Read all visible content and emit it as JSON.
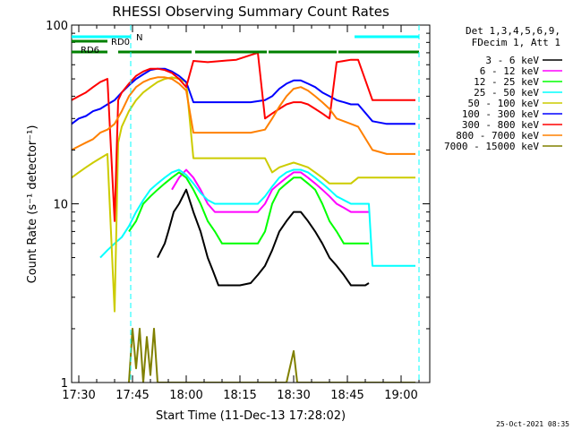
{
  "chart_data": {
    "type": "line",
    "title": "RHESSI Observing Summary Count Rates",
    "xlabel": "Start Time (11-Dec-13 17:28:02)",
    "ylabel": "Count Rate (s⁻¹ detector⁻¹)",
    "yscale": "log",
    "ylim": [
      1,
      100
    ],
    "xlim_minutes_after_1728": [
      0,
      100
    ],
    "x_tick_labels": [
      "17:30",
      "17:45",
      "18:00",
      "18:15",
      "18:30",
      "18:45",
      "19:00"
    ],
    "x_tick_minutes": [
      2,
      17,
      32,
      47,
      62,
      77,
      92
    ],
    "y_tick_labels": [
      "1",
      "10",
      "100"
    ],
    "y_tick_values": [
      1,
      10,
      100
    ],
    "legend_header": [
      "Det 1,3,4,5,6,9,",
      "FDecim 1, Att 1"
    ],
    "legend_position": "right",
    "date_stamp": "25-Oct-2021 08:35",
    "flags": [
      {
        "label": "N",
        "color": "#00ffff",
        "segments": [
          [
            0,
            16.5
          ],
          [
            79,
            97
          ]
        ]
      },
      {
        "label": "RD0",
        "color": "#008000",
        "segments": [
          [
            0,
            10
          ]
        ]
      },
      {
        "label": "RD6",
        "color": "#008000",
        "segments": [
          [
            0,
            10
          ],
          [
            13,
            33.5
          ],
          [
            34.5,
            54.5
          ],
          [
            55,
            74
          ],
          [
            74.5,
            97
          ]
        ]
      }
    ],
    "series": [
      {
        "name": "3 - 6 keV",
        "color": "#000000",
        "points": [
          [
            24,
            5
          ],
          [
            26,
            6
          ],
          [
            27,
            7
          ],
          [
            28.5,
            9
          ],
          [
            30,
            10
          ],
          [
            32,
            12
          ],
          [
            34,
            9
          ],
          [
            36,
            7
          ],
          [
            38,
            5
          ],
          [
            39.5,
            4.2
          ],
          [
            41,
            3.5
          ],
          [
            44,
            3.5
          ],
          [
            47,
            3.5
          ],
          [
            50,
            3.6
          ],
          [
            52,
            4
          ],
          [
            54,
            4.5
          ],
          [
            56,
            5.5
          ],
          [
            58,
            7
          ],
          [
            60,
            8
          ],
          [
            62,
            9
          ],
          [
            64,
            9
          ],
          [
            66,
            8
          ],
          [
            68,
            7
          ],
          [
            70,
            6
          ],
          [
            72,
            5
          ],
          [
            74,
            4.5
          ],
          [
            76,
            4
          ],
          [
            78,
            3.5
          ],
          [
            80,
            3.5
          ],
          [
            82,
            3.5
          ],
          [
            83,
            3.6
          ]
        ]
      },
      {
        "name": "6 - 12 keV",
        "color": "#ff00ff",
        "points": [
          [
            28,
            12
          ],
          [
            30,
            14
          ],
          [
            32,
            15.5
          ],
          [
            34,
            14
          ],
          [
            36,
            12
          ],
          [
            38,
            10
          ],
          [
            40,
            9
          ],
          [
            44,
            9
          ],
          [
            48,
            9
          ],
          [
            52,
            9
          ],
          [
            54,
            10
          ],
          [
            56,
            12
          ],
          [
            58,
            13
          ],
          [
            60,
            14
          ],
          [
            62,
            15
          ],
          [
            64,
            15
          ],
          [
            66,
            14
          ],
          [
            68,
            13
          ],
          [
            70,
            12
          ],
          [
            72,
            11
          ],
          [
            74,
            10
          ],
          [
            76,
            9.5
          ],
          [
            78,
            9
          ],
          [
            80,
            9
          ],
          [
            83,
            9
          ]
        ]
      },
      {
        "name": "12 - 25 keV",
        "color": "#00ff00",
        "points": [
          [
            16,
            7
          ],
          [
            18,
            8
          ],
          [
            20,
            10
          ],
          [
            22,
            11
          ],
          [
            24,
            12
          ],
          [
            26,
            13
          ],
          [
            28,
            14
          ],
          [
            30,
            15
          ],
          [
            32,
            14
          ],
          [
            34,
            12
          ],
          [
            36,
            10
          ],
          [
            38,
            8
          ],
          [
            40,
            7
          ],
          [
            42,
            6
          ],
          [
            44,
            6
          ],
          [
            46,
            6
          ],
          [
            48,
            6
          ],
          [
            50,
            6
          ],
          [
            52,
            6
          ],
          [
            54,
            7
          ],
          [
            56,
            10
          ],
          [
            58,
            12
          ],
          [
            60,
            13
          ],
          [
            62,
            14
          ],
          [
            64,
            14
          ],
          [
            66,
            13
          ],
          [
            68,
            12
          ],
          [
            70,
            10
          ],
          [
            72,
            8
          ],
          [
            74,
            7
          ],
          [
            76,
            6
          ],
          [
            78,
            6
          ],
          [
            80,
            6
          ],
          [
            83,
            6
          ]
        ]
      },
      {
        "name": "25 - 50 keV",
        "color": "#00ffff",
        "points": [
          [
            8,
            5
          ],
          [
            10,
            5.5
          ],
          [
            12,
            6
          ],
          [
            14,
            6.5
          ],
          [
            16,
            7.5
          ],
          [
            18,
            9
          ],
          [
            20,
            10.5
          ],
          [
            22,
            12
          ],
          [
            24,
            13
          ],
          [
            26,
            14
          ],
          [
            28,
            15
          ],
          [
            30,
            15.5
          ],
          [
            32,
            14.5
          ],
          [
            34,
            13
          ],
          [
            36,
            11.5
          ],
          [
            38,
            10.5
          ],
          [
            40,
            10
          ],
          [
            44,
            10
          ],
          [
            48,
            10
          ],
          [
            52,
            10
          ],
          [
            54,
            11
          ],
          [
            56,
            12.5
          ],
          [
            58,
            14
          ],
          [
            60,
            15
          ],
          [
            62,
            15.5
          ],
          [
            64,
            15.5
          ],
          [
            66,
            15
          ],
          [
            68,
            14
          ],
          [
            70,
            13
          ],
          [
            72,
            12
          ],
          [
            74,
            11
          ],
          [
            76,
            10.5
          ],
          [
            78,
            10
          ],
          [
            80,
            10
          ],
          [
            83,
            10
          ],
          [
            84,
            4.5
          ],
          [
            88,
            4.5
          ],
          [
            92,
            4.5
          ],
          [
            96,
            4.5
          ]
        ]
      },
      {
        "name": "50 - 100 keV",
        "color": "#cccc00",
        "points": [
          [
            0,
            14
          ],
          [
            2,
            15
          ],
          [
            4,
            16
          ],
          [
            6,
            17
          ],
          [
            8,
            18
          ],
          [
            10,
            19
          ],
          [
            12,
            2.5
          ],
          [
            13,
            22
          ],
          [
            14,
            27
          ],
          [
            16,
            33
          ],
          [
            18,
            38
          ],
          [
            20,
            42
          ],
          [
            22,
            45
          ],
          [
            24,
            48
          ],
          [
            26,
            50
          ],
          [
            28,
            51
          ],
          [
            30,
            50
          ],
          [
            32,
            48
          ],
          [
            34,
            18
          ],
          [
            38,
            18
          ],
          [
            42,
            18
          ],
          [
            46,
            18
          ],
          [
            50,
            18
          ],
          [
            54,
            18
          ],
          [
            56,
            15
          ],
          [
            58,
            16
          ],
          [
            60,
            16.5
          ],
          [
            62,
            17
          ],
          [
            64,
            16.5
          ],
          [
            66,
            16
          ],
          [
            68,
            15
          ],
          [
            70,
            14
          ],
          [
            72,
            13
          ],
          [
            74,
            13
          ],
          [
            76,
            13
          ],
          [
            78,
            13
          ],
          [
            80,
            14
          ],
          [
            84,
            14
          ],
          [
            90,
            14
          ],
          [
            96,
            14
          ]
        ]
      },
      {
        "name": "100 - 300 keV",
        "color": "#0000ff",
        "points": [
          [
            0,
            28
          ],
          [
            2,
            30
          ],
          [
            4,
            31
          ],
          [
            6,
            33
          ],
          [
            8,
            34
          ],
          [
            10,
            36
          ],
          [
            12,
            38
          ],
          [
            14,
            42
          ],
          [
            16,
            46
          ],
          [
            18,
            50
          ],
          [
            20,
            53
          ],
          [
            22,
            56
          ],
          [
            24,
            57
          ],
          [
            26,
            57
          ],
          [
            28,
            55
          ],
          [
            30,
            52
          ],
          [
            32,
            48
          ],
          [
            34,
            37
          ],
          [
            38,
            37
          ],
          [
            42,
            37
          ],
          [
            46,
            37
          ],
          [
            50,
            37
          ],
          [
            54,
            38
          ],
          [
            56,
            40
          ],
          [
            58,
            44
          ],
          [
            60,
            47
          ],
          [
            62,
            49
          ],
          [
            64,
            49
          ],
          [
            66,
            47
          ],
          [
            68,
            45
          ],
          [
            70,
            42
          ],
          [
            72,
            40
          ],
          [
            74,
            38
          ],
          [
            76,
            37
          ],
          [
            78,
            36
          ],
          [
            80,
            36
          ],
          [
            84,
            29
          ],
          [
            88,
            28
          ],
          [
            92,
            28
          ],
          [
            96,
            28
          ]
        ]
      },
      {
        "name": "300 - 800 keV",
        "color": "#ff0000",
        "points": [
          [
            0,
            38
          ],
          [
            2,
            40
          ],
          [
            4,
            42
          ],
          [
            6,
            45
          ],
          [
            8,
            48
          ],
          [
            10,
            50
          ],
          [
            12,
            8
          ],
          [
            13,
            38
          ],
          [
            14,
            42
          ],
          [
            16,
            47
          ],
          [
            18,
            52
          ],
          [
            20,
            55
          ],
          [
            22,
            57
          ],
          [
            24,
            57
          ],
          [
            26,
            56
          ],
          [
            28,
            54
          ],
          [
            30,
            50
          ],
          [
            32,
            45
          ],
          [
            34,
            63
          ],
          [
            38,
            62
          ],
          [
            42,
            63
          ],
          [
            46,
            64
          ],
          [
            50,
            68
          ],
          [
            52,
            70
          ],
          [
            54,
            30
          ],
          [
            56,
            32
          ],
          [
            58,
            34
          ],
          [
            60,
            36
          ],
          [
            62,
            37
          ],
          [
            64,
            37
          ],
          [
            66,
            36
          ],
          [
            68,
            34
          ],
          [
            70,
            32
          ],
          [
            72,
            30
          ],
          [
            74,
            62
          ],
          [
            78,
            64
          ],
          [
            80,
            64
          ],
          [
            84,
            38
          ],
          [
            88,
            38
          ],
          [
            92,
            38
          ],
          [
            96,
            38
          ]
        ]
      },
      {
        "name": "800 - 7000 keV",
        "color": "#ff8000",
        "points": [
          [
            0,
            20
          ],
          [
            2,
            21
          ],
          [
            4,
            22
          ],
          [
            6,
            23
          ],
          [
            8,
            25
          ],
          [
            10,
            26
          ],
          [
            12,
            28
          ],
          [
            14,
            33
          ],
          [
            16,
            40
          ],
          [
            18,
            45
          ],
          [
            20,
            48
          ],
          [
            22,
            50
          ],
          [
            24,
            51
          ],
          [
            26,
            51
          ],
          [
            28,
            50
          ],
          [
            30,
            47
          ],
          [
            32,
            43
          ],
          [
            34,
            25
          ],
          [
            38,
            25
          ],
          [
            42,
            25
          ],
          [
            46,
            25
          ],
          [
            50,
            25
          ],
          [
            54,
            26
          ],
          [
            56,
            30
          ],
          [
            58,
            35
          ],
          [
            60,
            40
          ],
          [
            62,
            44
          ],
          [
            64,
            45
          ],
          [
            66,
            43
          ],
          [
            68,
            40
          ],
          [
            70,
            37
          ],
          [
            72,
            34
          ],
          [
            74,
            30
          ],
          [
            76,
            29
          ],
          [
            78,
            28
          ],
          [
            80,
            27
          ],
          [
            84,
            20
          ],
          [
            88,
            19
          ],
          [
            92,
            19
          ],
          [
            96,
            19
          ]
        ]
      },
      {
        "name": "7000 - 15000 keV",
        "color": "#808000",
        "points": [
          [
            16,
            1
          ],
          [
            17,
            2
          ],
          [
            18,
            1.2
          ],
          [
            19,
            2
          ],
          [
            20,
            1
          ],
          [
            21,
            1.8
          ],
          [
            22,
            1.1
          ],
          [
            23,
            2
          ],
          [
            24,
            1
          ],
          [
            36,
            1
          ],
          [
            40,
            1
          ],
          [
            48,
            1
          ],
          [
            60,
            1
          ],
          [
            62,
            1.5
          ],
          [
            63,
            1
          ],
          [
            70,
            1
          ],
          [
            80,
            1
          ],
          [
            96,
            1
          ]
        ]
      }
    ]
  }
}
